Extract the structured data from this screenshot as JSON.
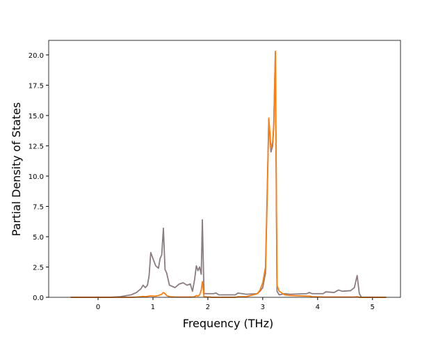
{
  "chart_data": {
    "type": "line",
    "xlabel": "Frequency (THz)",
    "ylabel": "Partial Density of States",
    "xlim": [
      -0.9,
      5.51
    ],
    "ylim": [
      0,
      21.2
    ],
    "xticks": [
      0,
      1,
      2,
      3,
      4,
      5
    ],
    "yticks": [
      {
        "value": 0,
        "label": "0.0"
      },
      {
        "value": 2.5,
        "label": "2.5"
      },
      {
        "value": 5,
        "label": "5.0"
      },
      {
        "value": 7.5,
        "label": "7.5"
      },
      {
        "value": 10,
        "label": "10.0"
      },
      {
        "value": 12.5,
        "label": "12.5"
      },
      {
        "value": 15,
        "label": "15.0"
      },
      {
        "value": 17.5,
        "label": "17.5"
      },
      {
        "value": 20,
        "label": "20.0"
      }
    ],
    "x": [
      -0.5,
      0.2,
      0.4,
      0.6,
      0.7,
      0.78,
      0.82,
      0.86,
      0.9,
      0.93,
      0.96,
      1.0,
      1.05,
      1.1,
      1.13,
      1.16,
      1.19,
      1.22,
      1.25,
      1.3,
      1.4,
      1.48,
      1.55,
      1.62,
      1.68,
      1.72,
      1.76,
      1.79,
      1.82,
      1.85,
      1.88,
      1.9,
      1.93,
      2.1,
      2.15,
      2.2,
      2.5,
      2.55,
      2.7,
      2.9,
      2.95,
      3.0,
      3.05,
      3.08,
      3.11,
      3.15,
      3.18,
      3.2,
      3.23,
      3.26,
      3.3,
      3.4,
      3.5,
      3.8,
      3.85,
      3.9,
      4.1,
      4.15,
      4.3,
      4.38,
      4.45,
      4.6,
      4.67,
      4.72,
      4.76,
      4.8,
      5.25
    ],
    "series": [
      {
        "color": "#8b7b82",
        "values": [
          0,
          0,
          0.05,
          0.2,
          0.4,
          0.7,
          1.0,
          0.8,
          1.0,
          1.8,
          3.7,
          3.2,
          2.6,
          2.4,
          3.2,
          3.5,
          5.7,
          2.3,
          2.0,
          1.0,
          0.8,
          1.1,
          1.2,
          1.0,
          1.1,
          0.5,
          1.5,
          2.6,
          2.2,
          2.5,
          1.9,
          6.4,
          0.3,
          0.3,
          0.35,
          0.2,
          0.2,
          0.35,
          0.25,
          0.3,
          0.5,
          0.8,
          2.0,
          8,
          14.6,
          12.0,
          12.5,
          14,
          20.2,
          0.5,
          0.2,
          0.3,
          0.25,
          0.3,
          0.4,
          0.3,
          0.3,
          0.45,
          0.4,
          0.6,
          0.5,
          0.55,
          0.8,
          1.8,
          0.3,
          0,
          0
        ]
      },
      {
        "color": "#ff7f0e",
        "values": [
          0,
          0,
          0,
          0,
          0.02,
          0.05,
          0.08,
          0.05,
          0.08,
          0.1,
          0.12,
          0.1,
          0.1,
          0.15,
          0.2,
          0.25,
          0.4,
          0.3,
          0.15,
          0.05,
          0.02,
          0.02,
          0.02,
          0.02,
          0.02,
          0.02,
          0.05,
          0.15,
          0.1,
          0.2,
          0.6,
          1.3,
          0.05,
          0,
          0,
          0,
          0,
          0.05,
          0.05,
          0.3,
          0.6,
          1.2,
          2.5,
          8.5,
          14.8,
          12.3,
          12.8,
          14.2,
          20.3,
          1.0,
          0.5,
          0.2,
          0.15,
          0.1,
          0.1,
          0.05,
          0.02,
          0.02,
          0.02,
          0.02,
          0.02,
          0.02,
          0.02,
          0.05,
          0,
          0,
          0
        ]
      }
    ]
  }
}
